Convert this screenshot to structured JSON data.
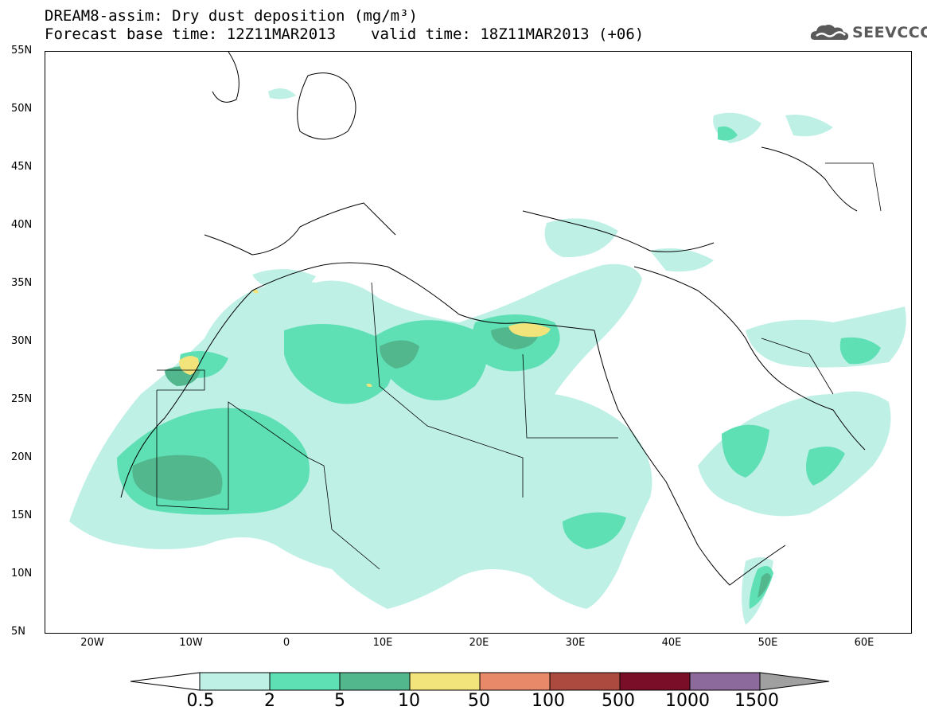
{
  "header": {
    "title_line1": "DREAM8-assim: Dry dust deposition (mg/m³)",
    "base_time": "Forecast base time: 12Z11MAR2013",
    "valid_time": "valid time: 18Z11MAR2013 (+06)"
  },
  "logo": {
    "text": "SEEVCCC",
    "icon": "cloud-icon"
  },
  "map": {
    "lat_labels": [
      "55N",
      "50N",
      "45N",
      "40N",
      "35N",
      "30N",
      "25N",
      "20N",
      "15N",
      "10N",
      "5N"
    ],
    "lon_labels": [
      "20W",
      "10W",
      "0",
      "10E",
      "20E",
      "30E",
      "40E",
      "50E",
      "60E"
    ],
    "lat_range": [
      5,
      55
    ],
    "lon_range": [
      -25,
      65
    ]
  },
  "colorbar": {
    "levels": [
      "0.5",
      "2",
      "5",
      "10",
      "50",
      "100",
      "500",
      "1000",
      "1500"
    ],
    "colors": [
      "#ffffff",
      "#bff0e6",
      "#5ee0b4",
      "#53b78e",
      "#f2e47a",
      "#e8896a",
      "#ad4a3f",
      "#7a0e28",
      "#8d6a9c",
      "#a0a0a0"
    ]
  }
}
